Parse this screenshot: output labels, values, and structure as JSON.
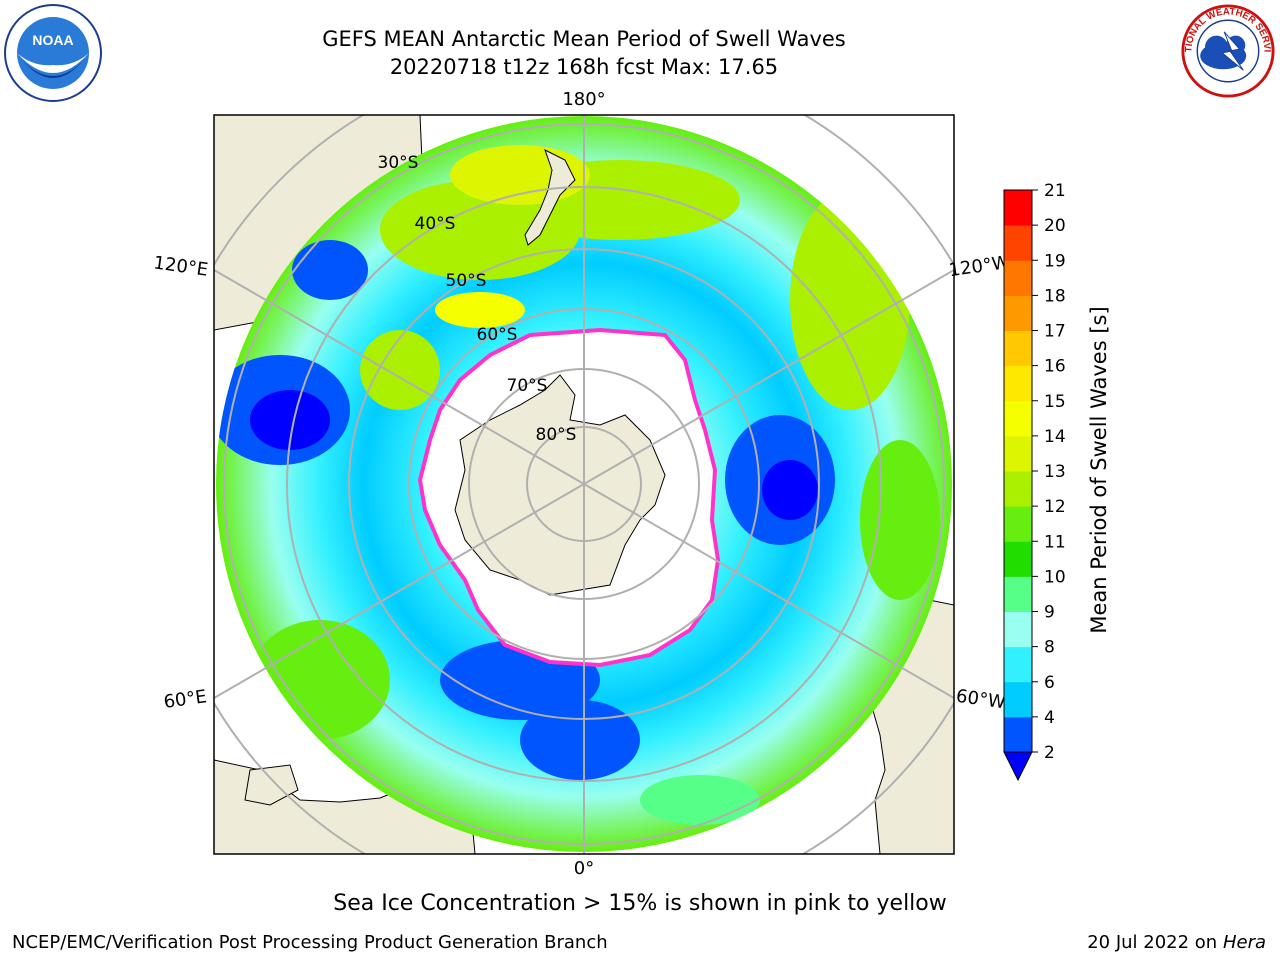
{
  "title": {
    "line1": "GEFS MEAN Antarctic Mean Period of Swell Waves",
    "line2": "20220718 t12z 168h fcst   Max: 17.65"
  },
  "map": {
    "projection": "south-polar-stereographic",
    "longitude_labels": [
      "180°",
      "120°E",
      "120°W",
      "60°E",
      "60°W",
      "0°"
    ],
    "latitude_labels": [
      "30°S",
      "40°S",
      "50°S",
      "60°S",
      "70°S",
      "80°S"
    ],
    "land_color": "#eeecd9",
    "ice_fill_color": "#ffffff",
    "ice_edge_color": "#ff33cc"
  },
  "colorbar": {
    "label": "Mean Period of Swell Waves [s]",
    "ticks": [
      "2",
      "4",
      "6",
      "8",
      "9",
      "10",
      "11",
      "12",
      "13",
      "14",
      "15",
      "16",
      "17",
      "18",
      "19",
      "20",
      "21"
    ],
    "colors": [
      "#0055ff",
      "#00ccff",
      "#33f0ff",
      "#99fff0",
      "#55ff88",
      "#22dd00",
      "#66ee11",
      "#aaf000",
      "#ddf500",
      "#f5ff00",
      "#ffe800",
      "#ffc800",
      "#ff9900",
      "#ff7700",
      "#ff4400",
      "#ff0000"
    ],
    "under_color": "#0000ff"
  },
  "footer": {
    "ice_note": "Sea Ice Concentration > 15% is shown in pink to yellow",
    "credit": "NCEP/EMC/Verification Post Processing Product Generation Branch",
    "date_prefix": "20 Jul 2022 on ",
    "date_host": "Hera"
  },
  "logos": {
    "noaa_text": "NOAA",
    "nws_text": "NATIONAL WEATHER SERVICE"
  }
}
